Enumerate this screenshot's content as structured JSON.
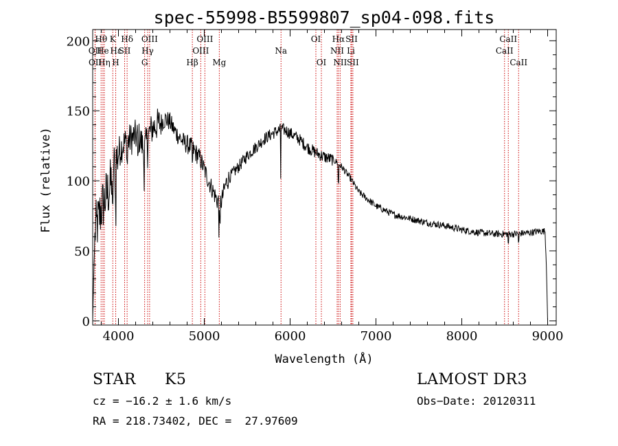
{
  "chart_data": {
    "type": "line",
    "title": "spec-55998-B5599807_sp04-098.fits",
    "xlabel": "Wavelength (Å)",
    "ylabel": "Flux (relative)",
    "xlim": [
      3700,
      9100
    ],
    "ylim": [
      -3,
      208
    ],
    "x_ticks": [
      4000,
      5000,
      6000,
      7000,
      8000,
      9000
    ],
    "y_ticks": [
      0,
      50,
      100,
      150,
      200
    ],
    "y_tick_labels": [
      "0",
      "50",
      "100",
      "150",
      "200"
    ],
    "grid": false,
    "line_color": "#000000",
    "marker_color": "#cc0000",
    "continuum": [
      [
        3700,
        0
      ],
      [
        3715,
        40
      ],
      [
        3730,
        65
      ],
      [
        3760,
        70
      ],
      [
        3800,
        80
      ],
      [
        3850,
        88
      ],
      [
        3900,
        95
      ],
      [
        3950,
        110
      ],
      [
        4000,
        120
      ],
      [
        4050,
        126
      ],
      [
        4100,
        128
      ],
      [
        4150,
        130
      ],
      [
        4200,
        132
      ],
      [
        4250,
        130
      ],
      [
        4300,
        122
      ],
      [
        4350,
        133
      ],
      [
        4400,
        138
      ],
      [
        4450,
        140
      ],
      [
        4500,
        142
      ],
      [
        4550,
        144
      ],
      [
        4600,
        142
      ],
      [
        4650,
        136
      ],
      [
        4700,
        132
      ],
      [
        4750,
        128
      ],
      [
        4800,
        126
      ],
      [
        4850,
        124
      ],
      [
        4900,
        120
      ],
      [
        4950,
        116
      ],
      [
        5000,
        108
      ],
      [
        5050,
        100
      ],
      [
        5100,
        93
      ],
      [
        5150,
        86
      ],
      [
        5200,
        85
      ],
      [
        5250,
        98
      ],
      [
        5300,
        103
      ],
      [
        5400,
        110
      ],
      [
        5500,
        118
      ],
      [
        5600,
        124
      ],
      [
        5700,
        130
      ],
      [
        5800,
        134
      ],
      [
        5900,
        137
      ],
      [
        5950,
        136
      ],
      [
        6000,
        134
      ],
      [
        6100,
        130
      ],
      [
        6200,
        124
      ],
      [
        6300,
        120
      ],
      [
        6400,
        117
      ],
      [
        6500,
        115
      ],
      [
        6550,
        113
      ],
      [
        6600,
        110
      ],
      [
        6650,
        106
      ],
      [
        6700,
        102
      ],
      [
        6750,
        97
      ],
      [
        6800,
        92
      ],
      [
        6900,
        87
      ],
      [
        7000,
        82
      ],
      [
        7100,
        79
      ],
      [
        7200,
        76
      ],
      [
        7400,
        73
      ],
      [
        7600,
        70
      ],
      [
        7800,
        68
      ],
      [
        8000,
        65
      ],
      [
        8200,
        63
      ],
      [
        8400,
        62
      ],
      [
        8600,
        62
      ],
      [
        8800,
        63
      ],
      [
        8900,
        64
      ],
      [
        8970,
        64
      ],
      [
        8985,
        40
      ],
      [
        9000,
        0
      ]
    ],
    "absorption_dips": [
      [
        3934,
        35
      ],
      [
        3968,
        30
      ],
      [
        4101,
        15
      ],
      [
        4226,
        15
      ],
      [
        4300,
        25
      ],
      [
        4340,
        10
      ],
      [
        4861,
        10
      ],
      [
        5170,
        25
      ],
      [
        5183,
        20
      ],
      [
        5890,
        35
      ],
      [
        6563,
        14
      ],
      [
        8542,
        6
      ],
      [
        8662,
        6
      ]
    ],
    "spectral_lines": [
      {
        "label": "Hθ",
        "wavelength": 3798,
        "row": 0
      },
      {
        "label": "He",
        "wavelength": 3819,
        "row": 1
      },
      {
        "label": "OII",
        "wavelength": 3727,
        "row": 1
      },
      {
        "label": "OII",
        "wavelength": 3729,
        "row": 2
      },
      {
        "label": "Hη",
        "wavelength": 3835,
        "row": 2
      },
      {
        "label": "K",
        "wavelength": 3934,
        "row": 0
      },
      {
        "label": "H",
        "wavelength": 3968,
        "row": 2
      },
      {
        "label": "Hε",
        "wavelength": 3970,
        "row": 1
      },
      {
        "label": "SII",
        "wavelength": 4072,
        "row": 1
      },
      {
        "label": "Hδ",
        "wavelength": 4101,
        "row": 0
      },
      {
        "label": "OIII",
        "wavelength": 4363,
        "row": 0
      },
      {
        "label": "Hγ",
        "wavelength": 4340,
        "row": 1
      },
      {
        "label": "G",
        "wavelength": 4305,
        "row": 2
      },
      {
        "label": "Hβ",
        "wavelength": 4861,
        "row": 2
      },
      {
        "label": "OIII",
        "wavelength": 5007,
        "row": 0
      },
      {
        "label": "OIII",
        "wavelength": 4959,
        "row": 1
      },
      {
        "label": "Mg",
        "wavelength": 5175,
        "row": 2
      },
      {
        "label": "Na",
        "wavelength": 5894,
        "row": 1
      },
      {
        "label": "OI",
        "wavelength": 6300,
        "row": 0
      },
      {
        "label": "OI",
        "wavelength": 6364,
        "row": 2
      },
      {
        "label": "Hα",
        "wavelength": 6563,
        "row": 0
      },
      {
        "label": "SII",
        "wavelength": 6716,
        "row": 0
      },
      {
        "label": "NII",
        "wavelength": 6548,
        "row": 1
      },
      {
        "label": "Li",
        "wavelength": 6708,
        "row": 1
      },
      {
        "label": "NII",
        "wavelength": 6583,
        "row": 2
      },
      {
        "label": "SII",
        "wavelength": 6731,
        "row": 2
      },
      {
        "label": "CaII",
        "wavelength": 8542,
        "row": 0
      },
      {
        "label": "CaII",
        "wavelength": 8498,
        "row": 1
      },
      {
        "label": "CaII",
        "wavelength": 8662,
        "row": 2
      }
    ]
  },
  "info": {
    "object_class": "STAR",
    "subclass": "K5",
    "survey": "LAMOST DR3",
    "cz": "cz = −16.2 ± 1.6 km/s",
    "obs_date": "Obs−Date: 20120311",
    "coords": "RA = 218.73402, DEC =  27.97609"
  }
}
